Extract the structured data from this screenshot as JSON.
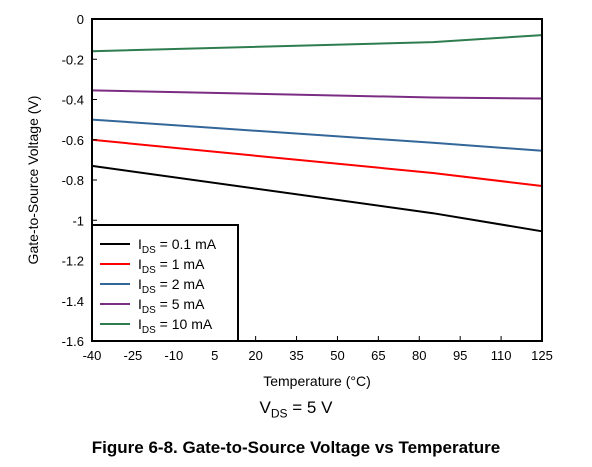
{
  "chart_data": {
    "type": "line",
    "title": "",
    "xlabel": "Temperature (°C)",
    "ylabel": "Gate-to-Source Voltage (V)",
    "xlim": [
      -40,
      125
    ],
    "ylim": [
      -1.6,
      0
    ],
    "xticks": [
      -40,
      -25,
      -10,
      5,
      20,
      35,
      50,
      65,
      80,
      95,
      110,
      125
    ],
    "xtick_labels": [
      "-40",
      "-25",
      "-10",
      "5",
      "20",
      "35",
      "50",
      "65",
      "80",
      "95",
      "110",
      "125"
    ],
    "yticks": [
      0,
      -0.2,
      -0.4,
      -0.6,
      -0.8,
      -1,
      -1.2,
      -1.4,
      -1.6
    ],
    "ytick_labels": [
      "0",
      "-0.2",
      "-0.4",
      "-0.6",
      "-0.8",
      "-1",
      "-1.2",
      "-1.4",
      "-1.6"
    ],
    "grid": false,
    "legend_position": "bottom-left",
    "series": [
      {
        "name": "I_DS = 0.1 mA",
        "label_main": "I",
        "label_sub": "DS",
        "label_rest": " = 0.1 mA",
        "color": "#000000",
        "x": [
          -40,
          85,
          125
        ],
        "y": [
          -0.73,
          -0.965,
          -1.055
        ]
      },
      {
        "name": "I_DS = 1 mA",
        "label_main": "I",
        "label_sub": "DS",
        "label_rest": " = 1 mA",
        "color": "#ff0000",
        "x": [
          -40,
          85,
          125
        ],
        "y": [
          -0.6,
          -0.765,
          -0.83
        ]
      },
      {
        "name": "I_DS = 2 mA",
        "label_main": "I",
        "label_sub": "DS",
        "label_rest": " = 2 mA",
        "color": "#336699",
        "x": [
          -40,
          85,
          125
        ],
        "y": [
          -0.5,
          -0.615,
          -0.655
        ]
      },
      {
        "name": "I_DS = 5 mA",
        "label_main": "I",
        "label_sub": "DS",
        "label_rest": " = 5 mA",
        "color": "#7b2c83",
        "x": [
          -40,
          85,
          125
        ],
        "y": [
          -0.355,
          -0.39,
          -0.395
        ]
      },
      {
        "name": "I_DS = 10 mA",
        "label_main": "I",
        "label_sub": "DS",
        "label_rest": " = 10 mA",
        "color": "#2e7d4f",
        "x": [
          -40,
          85,
          125
        ],
        "y": [
          -0.16,
          -0.115,
          -0.08
        ]
      }
    ]
  },
  "condition": {
    "prefix": "V",
    "sub": "DS",
    "rest": " = 5 V"
  },
  "caption": "Figure 6-8. Gate-to-Source Voltage vs Temperature"
}
